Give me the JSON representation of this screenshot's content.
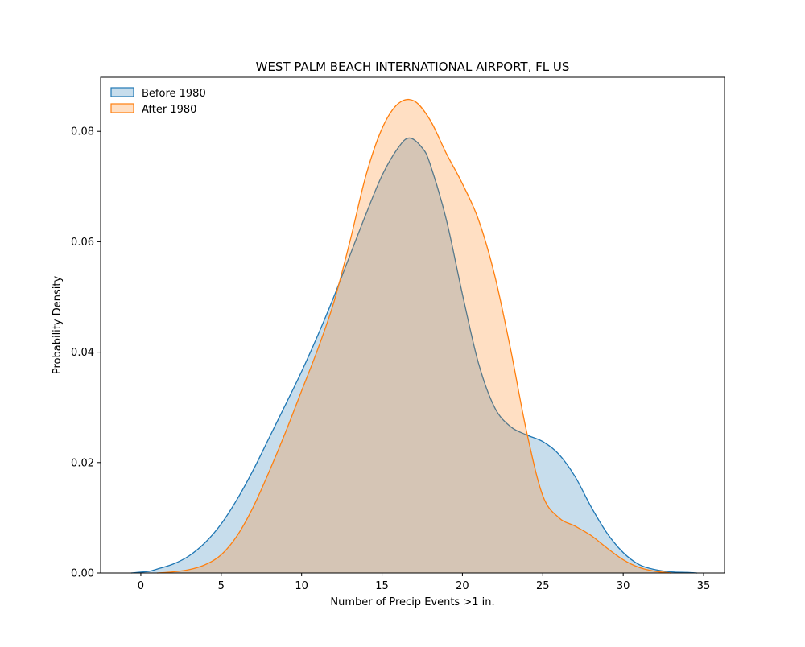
{
  "chart_data": {
    "type": "area",
    "title": "WEST PALM BEACH INTERNATIONAL AIRPORT, FL US",
    "xlabel": "Number of Precip Events >1 in.",
    "ylabel": "Probability Density",
    "xlim": [
      -2.5,
      36.3
    ],
    "ylim": [
      0,
      0.0898
    ],
    "x_ticks": [
      0,
      5,
      10,
      15,
      20,
      25,
      30,
      35
    ],
    "y_ticks": [
      0.0,
      0.02,
      0.04,
      0.06,
      0.08
    ],
    "y_tick_labels": [
      "0.00",
      "0.02",
      "0.04",
      "0.06",
      "0.08"
    ],
    "grid": false,
    "legend": {
      "placement": "top-left"
    },
    "series": [
      {
        "name": "Before 1980",
        "color": "#1f77b4",
        "fill_color": "#1f77b4",
        "fill_opacity": 0.25,
        "x": [
          -0.6,
          0.5,
          1,
          2,
          3,
          4,
          5,
          6,
          7,
          8,
          9,
          10,
          11,
          12,
          13,
          14,
          15,
          16,
          16.7,
          17.5,
          18,
          19,
          20,
          21,
          22,
          23,
          24,
          25,
          26,
          27,
          28,
          29,
          30,
          31,
          32,
          33,
          34,
          34.6
        ],
        "y": [
          0.0,
          0.0003,
          0.0007,
          0.0016,
          0.0031,
          0.0055,
          0.0089,
          0.0134,
          0.0187,
          0.0246,
          0.0305,
          0.0365,
          0.043,
          0.05,
          0.0575,
          0.065,
          0.072,
          0.077,
          0.0788,
          0.077,
          0.074,
          0.064,
          0.0505,
          0.038,
          0.03,
          0.0265,
          0.025,
          0.0238,
          0.0215,
          0.0175,
          0.012,
          0.0072,
          0.0037,
          0.0015,
          0.0006,
          0.0002,
          0.0001,
          0.0
        ]
      },
      {
        "name": "After 1980",
        "color": "#ff7f0e",
        "fill_color": "#ff7f0e",
        "fill_opacity": 0.25,
        "x": [
          1,
          2,
          3,
          4,
          5,
          6,
          7,
          8,
          9,
          10,
          11,
          12,
          13,
          14,
          15,
          16,
          17,
          18,
          19,
          20,
          21,
          22,
          23,
          24,
          25,
          26,
          27,
          28,
          29,
          30,
          31,
          32,
          33
        ],
        "y": [
          0.0,
          0.0002,
          0.0006,
          0.0015,
          0.0033,
          0.0068,
          0.012,
          0.0185,
          0.0255,
          0.033,
          0.0405,
          0.049,
          0.06,
          0.072,
          0.0805,
          0.085,
          0.0855,
          0.082,
          0.076,
          0.0705,
          0.064,
          0.054,
          0.0405,
          0.0255,
          0.014,
          0.01,
          0.0085,
          0.0068,
          0.0045,
          0.0024,
          0.001,
          0.0003,
          0.0
        ]
      }
    ]
  }
}
